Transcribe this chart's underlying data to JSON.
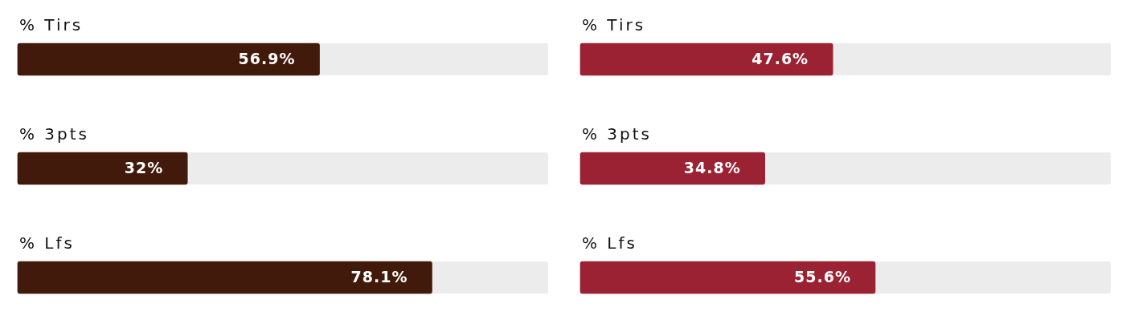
{
  "chart_data": [
    {
      "type": "bar",
      "orientation": "horizontal",
      "categories": [
        "% Tirs",
        "% 3pts",
        "% Lfs"
      ],
      "values": [
        56.9,
        32,
        78.1
      ],
      "value_labels": [
        "56.9%",
        "32%",
        "78.1%"
      ],
      "color": "#421a0b",
      "xlim": [
        0,
        100
      ],
      "tick_labels": false,
      "legend": false
    },
    {
      "type": "bar",
      "orientation": "horizontal",
      "categories": [
        "% Tirs",
        "% 3pts",
        "% Lfs"
      ],
      "values": [
        47.6,
        34.8,
        55.6
      ],
      "value_labels": [
        "47.6%",
        "34.8%",
        "55.6%"
      ],
      "color": "#9b2232",
      "xlim": [
        0,
        100
      ],
      "tick_labels": false,
      "legend": false
    }
  ]
}
